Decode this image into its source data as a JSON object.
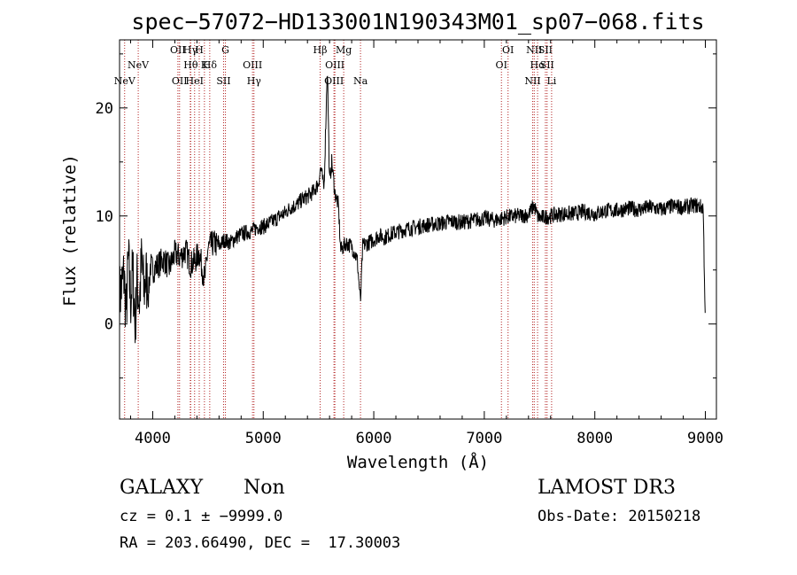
{
  "chart_data": {
    "type": "line",
    "title": "spec−57072−HD133001N190343M01_sp07−068.fits",
    "xlabel": "Wavelength (Å)",
    "ylabel": "Flux (relative)",
    "xlim": [
      3700,
      9100
    ],
    "ylim": [
      -8.8,
      26.3
    ],
    "xticks": [
      4000,
      5000,
      6000,
      7000,
      8000,
      9000
    ],
    "yticks": [
      0,
      10,
      20
    ],
    "grid": false,
    "series": [
      {
        "name": "spectrum",
        "x": [
          3700,
          3740,
          3760,
          3780,
          3800,
          3820,
          3840,
          3860,
          3880,
          3900,
          3920,
          3940,
          3960,
          3980,
          4000,
          4050,
          4100,
          4150,
          4200,
          4250,
          4300,
          4340,
          4380,
          4420,
          4470,
          4500,
          4550,
          4600,
          4650,
          4700,
          4750,
          4800,
          4850,
          4900,
          4950,
          5000,
          5050,
          5100,
          5150,
          5200,
          5250,
          5300,
          5350,
          5400,
          5450,
          5500,
          5520,
          5550,
          5580,
          5600,
          5620,
          5650,
          5680,
          5700,
          5750,
          5800,
          5850,
          5880,
          5900,
          5950,
          6000,
          6050,
          6100,
          6150,
          6200,
          6300,
          6400,
          6500,
          6600,
          6700,
          6800,
          6900,
          7000,
          7100,
          7200,
          7300,
          7400,
          7450,
          7480,
          7500,
          7600,
          7700,
          7800,
          7900,
          8000,
          8100,
          8200,
          8300,
          8400,
          8500,
          8600,
          8700,
          8800,
          8900,
          8980,
          9000
        ],
        "y": [
          2.5,
          4.5,
          1.0,
          6.0,
          2.0,
          5.0,
          0.0,
          4.0,
          2.0,
          6.0,
          3.0,
          4.5,
          2.5,
          5.5,
          5.0,
          5.5,
          6.0,
          5.2,
          6.5,
          6.2,
          6.8,
          5.5,
          5.8,
          6.6,
          4.0,
          7.0,
          7.5,
          7.2,
          7.8,
          7.5,
          8.0,
          8.3,
          8.5,
          8.6,
          9.0,
          9.0,
          9.3,
          9.6,
          10.0,
          10.3,
          10.8,
          11.0,
          11.5,
          11.8,
          12.2,
          13.0,
          14.5,
          12.5,
          24.0,
          13.0,
          15.0,
          12.0,
          11.0,
          6.8,
          7.5,
          7.2,
          6.0,
          2.0,
          7.3,
          7.5,
          7.8,
          8.2,
          8.0,
          8.3,
          8.5,
          8.8,
          9.0,
          9.2,
          9.3,
          9.5,
          9.4,
          9.6,
          9.8,
          9.6,
          9.9,
          10.0,
          10.1,
          11.0,
          10.0,
          9.8,
          10.0,
          10.2,
          10.2,
          10.4,
          10.2,
          10.5,
          10.5,
          10.7,
          10.6,
          10.8,
          10.6,
          10.9,
          10.8,
          11.0,
          10.8,
          0.0
        ]
      }
    ],
    "lines": [
      {
        "w": 3746,
        "label": "NeV",
        "row": 3
      },
      {
        "w": 3869,
        "label": "NeV",
        "row": 2
      },
      {
        "w": 4228,
        "label": "OII",
        "row": 1
      },
      {
        "w": 4243,
        "label": "OII",
        "row": 3
      },
      {
        "w": 4340,
        "label": "Hγ",
        "row": 1
      },
      {
        "w": 4344,
        "label": "Hθ",
        "row": 2
      },
      {
        "w": 4379,
        "label": "HeI",
        "row": 3
      },
      {
        "w": 4421,
        "label": "H",
        "row": 1
      },
      {
        "w": 4468,
        "label": "K",
        "row": 2
      },
      {
        "w": 4516,
        "label": "Hδ",
        "row": 2
      },
      {
        "w": 4641,
        "label": "SII",
        "row": 3
      },
      {
        "w": 4658,
        "label": "G",
        "row": 1
      },
      {
        "w": 4903,
        "label": "OIII",
        "row": 2
      },
      {
        "w": 4916,
        "label": "Hγ",
        "row": 3
      },
      {
        "w": 5515,
        "label": "Hβ",
        "row": 1
      },
      {
        "w": 5640,
        "label": "OIII",
        "row": 3
      },
      {
        "w": 5648,
        "label": "OIII",
        "row": 2
      },
      {
        "w": 5728,
        "label": "Mg",
        "row": 1
      },
      {
        "w": 5880,
        "label": "Na",
        "row": 3
      },
      {
        "w": 7155,
        "label": "OI",
        "row": 2
      },
      {
        "w": 7215,
        "label": "OI",
        "row": 1
      },
      {
        "w": 7438,
        "label": "NII",
        "row": 3
      },
      {
        "w": 7452,
        "label": "NII",
        "row": 1
      },
      {
        "w": 7482,
        "label": "Hα",
        "row": 2
      },
      {
        "w": 7553,
        "label": "SII",
        "row": 1
      },
      {
        "w": 7568,
        "label": "SII",
        "row": 2
      },
      {
        "w": 7609,
        "label": "Li",
        "row": 3
      }
    ],
    "line_color": "#b22222"
  },
  "info": {
    "class_label": "GALAXY",
    "subclass_label": "Non",
    "cz_text": "cz = 0.1 ± −9999.0",
    "radec_text": "RA = 203.66490, DEC =  17.30003",
    "survey_label": "LAMOST DR3",
    "obsdate_text": "Obs-Date: 20150218"
  }
}
